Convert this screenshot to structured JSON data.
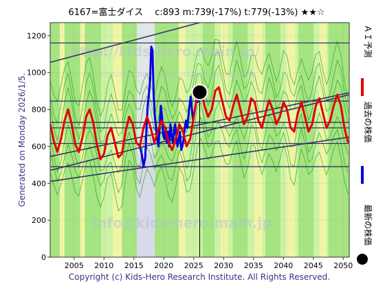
{
  "chart_data": {
    "type": "line",
    "title": "6167=富士ダイス　 c:893 m:739(-17%) t:779(-13%) ★★☆",
    "side_label": "Generated on Monday 2026/1/5.",
    "copyright": "Copyright (c) Kids-Hero Research Institute. All Rights Reserved.",
    "watermark_top": "http://kids-hero.main.jp/",
    "watermark_sub": "http://kids-hero.main.jp/tools/stockcode/6167",
    "watermark_bottom": "info@kids-hero.main.jp",
    "xlim": [
      2001,
      2051
    ],
    "ylim": [
      0,
      1270
    ],
    "x_ticks": [
      2005,
      2010,
      2015,
      2020,
      2025,
      2030,
      2035,
      2040,
      2045,
      2050
    ],
    "y_ticks": [
      0,
      200,
      400,
      600,
      800,
      1000,
      1200
    ],
    "grid": true,
    "legend_position": "right",
    "legend": [
      {
        "name": "ＡＩ予測",
        "color": "#e00000",
        "kind": "line"
      },
      {
        "name": "過去の株価",
        "color": "#0000e0",
        "kind": "line"
      },
      {
        "name": "最新の株価",
        "color": "#000000",
        "kind": "dot"
      }
    ],
    "colors": {
      "background": "#ffffff",
      "band_green": "#9ee07a",
      "band_light": "#ccf3a4",
      "band_yellow": "#f5f5a6",
      "band_grey": "#e4e4f0",
      "thin_lines": "#22a022",
      "trend_lines": "#333366",
      "forecast": "#e00000",
      "history": "#0000e0",
      "current_marker": "#000000"
    },
    "current": {
      "year": 2026.0,
      "value": 893
    },
    "horizontal_levels": [
      1160,
      845,
      730,
      700,
      615,
      490
    ],
    "trend_lines": [
      {
        "x": [
          2001,
          2026
        ],
        "y": [
          1055,
          1270
        ]
      },
      {
        "x": [
          2001,
          2051
        ],
        "y": [
          545,
          890
        ]
      },
      {
        "x": [
          2001,
          2051
        ],
        "y": [
          470,
          880
        ]
      },
      {
        "x": [
          2001,
          2051
        ],
        "y": [
          410,
          650
        ]
      }
    ],
    "series": [
      {
        "name": "過去の株価",
        "color": "#0000e0",
        "x": [
          2016.0,
          2016.3,
          2016.6,
          2016.9,
          2017.1,
          2017.3,
          2017.5,
          2017.7,
          2017.9,
          2018.1,
          2018.3,
          2018.5,
          2018.7,
          2018.9,
          2019.1,
          2019.3,
          2019.5,
          2019.7,
          2019.9,
          2020.1,
          2020.3,
          2020.5,
          2020.7,
          2020.9,
          2021.1,
          2021.3,
          2021.5,
          2021.7,
          2021.9,
          2022.1,
          2022.3,
          2022.5,
          2022.7,
          2022.9,
          2023.1,
          2023.3,
          2023.5,
          2023.7,
          2023.9,
          2024.1,
          2024.3,
          2024.5,
          2024.7,
          2024.9,
          2025.1,
          2025.3,
          2025.5,
          2025.7,
          2025.9,
          2026.0
        ],
        "y": [
          600,
          560,
          490,
          540,
          700,
          820,
          880,
          960,
          1140,
          1120,
          880,
          760,
          700,
          640,
          600,
          700,
          820,
          760,
          660,
          640,
          700,
          620,
          680,
          600,
          720,
          660,
          620,
          680,
          720,
          640,
          600,
          640,
          680,
          580,
          600,
          640,
          700,
          740,
          700,
          760,
          820,
          870,
          800,
          740,
          780,
          820,
          860,
          840,
          880,
          893
        ]
      },
      {
        "name": "ＡＩ予測",
        "color": "#e00000",
        "x": [
          2001.0,
          2001.6,
          2002.2,
          2002.8,
          2003.4,
          2004.0,
          2004.6,
          2005.2,
          2005.8,
          2006.4,
          2007.0,
          2007.6,
          2008.2,
          2008.8,
          2009.4,
          2010.0,
          2010.6,
          2011.2,
          2011.8,
          2012.4,
          2013.0,
          2013.6,
          2014.2,
          2014.8,
          2015.4,
          2016.0,
          2016.6,
          2017.2,
          2017.8,
          2018.4,
          2019.0,
          2019.6,
          2020.2,
          2020.8,
          2021.4,
          2022.0,
          2022.6,
          2023.2,
          2023.8,
          2024.4,
          2025.0,
          2025.6,
          2026.2,
          2026.8,
          2027.4,
          2028.0,
          2028.6,
          2029.2,
          2029.8,
          2030.4,
          2031.0,
          2031.6,
          2032.2,
          2032.8,
          2033.4,
          2034.0,
          2034.6,
          2035.2,
          2035.8,
          2036.4,
          2037.0,
          2037.6,
          2038.2,
          2038.8,
          2039.4,
          2040.0,
          2040.6,
          2041.2,
          2041.8,
          2042.4,
          2043.0,
          2043.6,
          2044.2,
          2044.8,
          2045.4,
          2046.0,
          2046.6,
          2047.2,
          2047.8,
          2048.4,
          2049.0,
          2049.6,
          2050.2,
          2050.8
        ],
        "y": [
          720,
          630,
          570,
          640,
          740,
          800,
          720,
          610,
          570,
          650,
          760,
          800,
          730,
          610,
          530,
          560,
          660,
          700,
          620,
          540,
          560,
          680,
          760,
          720,
          620,
          600,
          700,
          760,
          700,
          620,
          680,
          740,
          700,
          620,
          580,
          640,
          720,
          680,
          600,
          640,
          760,
          880,
          900,
          820,
          760,
          800,
          900,
          920,
          840,
          760,
          740,
          820,
          880,
          800,
          720,
          760,
          860,
          840,
          740,
          700,
          780,
          850,
          800,
          720,
          760,
          840,
          800,
          700,
          680,
          780,
          840,
          760,
          680,
          720,
          820,
          860,
          780,
          700,
          740,
          820,
          880,
          820,
          700,
          620
        ]
      }
    ]
  }
}
